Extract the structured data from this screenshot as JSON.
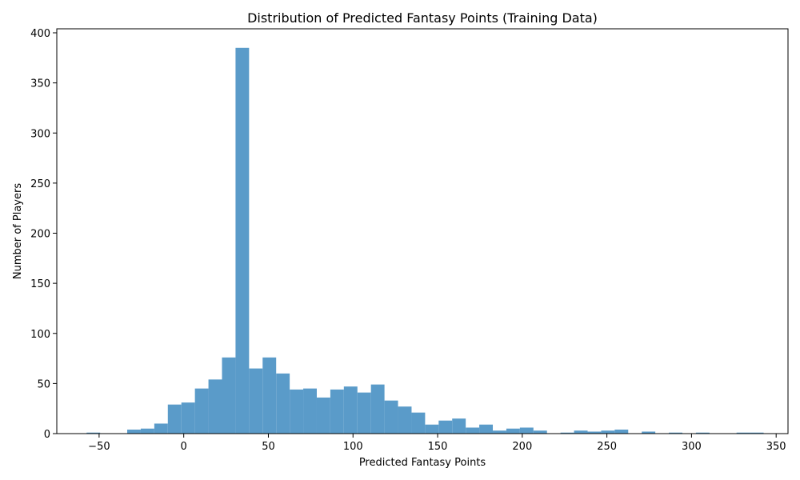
{
  "chart_data": {
    "type": "bar",
    "title": "Distribution of Predicted Fantasy Points (Training Data)",
    "xlabel": "Predicted Fantasy Points",
    "ylabel": "Number of Players",
    "xlim": [
      -75,
      357
    ],
    "ylim": [
      0,
      404
    ],
    "xticks": [
      -50,
      0,
      50,
      100,
      150,
      200,
      250,
      300,
      350
    ],
    "xtick_labels": [
      "−50",
      "0",
      "50",
      "100",
      "150",
      "200",
      "250",
      "300",
      "350"
    ],
    "yticks": [
      0,
      50,
      100,
      150,
      200,
      250,
      300,
      350,
      400
    ],
    "ytick_labels": [
      "0",
      "50",
      "100",
      "150",
      "200",
      "250",
      "300",
      "350",
      "400"
    ],
    "grid": false,
    "bar_color": "#5a9bc9",
    "bins": [
      {
        "x0": -57.4,
        "x1": -49.4,
        "count": 1
      },
      {
        "x0": -33.4,
        "x1": -25.4,
        "count": 4
      },
      {
        "x0": -25.4,
        "x1": -17.4,
        "count": 5
      },
      {
        "x0": -17.4,
        "x1": -9.4,
        "count": 10
      },
      {
        "x0": -9.4,
        "x1": -1.4,
        "count": 29
      },
      {
        "x0": -1.4,
        "x1": 6.6,
        "count": 31
      },
      {
        "x0": 6.6,
        "x1": 14.6,
        "count": 45
      },
      {
        "x0": 14.6,
        "x1": 22.6,
        "count": 54
      },
      {
        "x0": 22.6,
        "x1": 30.6,
        "count": 76
      },
      {
        "x0": 30.6,
        "x1": 38.6,
        "count": 385
      },
      {
        "x0": 38.6,
        "x1": 46.6,
        "count": 65
      },
      {
        "x0": 46.6,
        "x1": 54.6,
        "count": 76
      },
      {
        "x0": 54.6,
        "x1": 62.6,
        "count": 60
      },
      {
        "x0": 62.6,
        "x1": 70.6,
        "count": 44
      },
      {
        "x0": 70.6,
        "x1": 78.6,
        "count": 45
      },
      {
        "x0": 78.6,
        "x1": 86.6,
        "count": 36
      },
      {
        "x0": 86.6,
        "x1": 94.6,
        "count": 44
      },
      {
        "x0": 94.6,
        "x1": 102.6,
        "count": 47
      },
      {
        "x0": 102.6,
        "x1": 110.6,
        "count": 41
      },
      {
        "x0": 110.6,
        "x1": 118.6,
        "count": 49
      },
      {
        "x0": 118.6,
        "x1": 126.6,
        "count": 33
      },
      {
        "x0": 126.6,
        "x1": 134.6,
        "count": 27
      },
      {
        "x0": 134.6,
        "x1": 142.6,
        "count": 21
      },
      {
        "x0": 142.6,
        "x1": 150.6,
        "count": 9
      },
      {
        "x0": 150.6,
        "x1": 158.6,
        "count": 13
      },
      {
        "x0": 158.6,
        "x1": 166.6,
        "count": 15
      },
      {
        "x0": 166.6,
        "x1": 174.6,
        "count": 6
      },
      {
        "x0": 174.6,
        "x1": 182.6,
        "count": 9
      },
      {
        "x0": 182.6,
        "x1": 190.6,
        "count": 3
      },
      {
        "x0": 190.6,
        "x1": 198.6,
        "count": 5
      },
      {
        "x0": 198.6,
        "x1": 206.6,
        "count": 6
      },
      {
        "x0": 206.6,
        "x1": 214.6,
        "count": 3
      },
      {
        "x0": 222.6,
        "x1": 230.6,
        "count": 1
      },
      {
        "x0": 230.6,
        "x1": 238.6,
        "count": 3
      },
      {
        "x0": 238.6,
        "x1": 246.6,
        "count": 2
      },
      {
        "x0": 246.6,
        "x1": 254.6,
        "count": 3
      },
      {
        "x0": 254.6,
        "x1": 262.6,
        "count": 4
      },
      {
        "x0": 270.6,
        "x1": 278.6,
        "count": 2
      },
      {
        "x0": 286.6,
        "x1": 294.6,
        "count": 1
      },
      {
        "x0": 302.6,
        "x1": 310.6,
        "count": 1
      },
      {
        "x0": 326.6,
        "x1": 334.6,
        "count": 1
      },
      {
        "x0": 334.6,
        "x1": 342.6,
        "count": 1
      }
    ]
  }
}
